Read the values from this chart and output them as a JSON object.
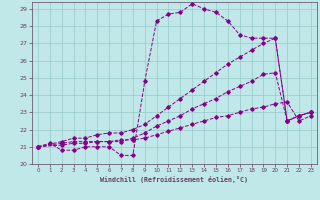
{
  "xlabel": "Windchill (Refroidissement éolien,°C)",
  "bg_color": "#c0e8e8",
  "grid_color": "#98c8c8",
  "line_color": "#880088",
  "spine_color": "#604060",
  "xlim": [
    -0.5,
    23.5
  ],
  "ylim": [
    20,
    29.4
  ],
  "xticks": [
    0,
    1,
    2,
    3,
    4,
    5,
    6,
    7,
    8,
    9,
    10,
    11,
    12,
    13,
    14,
    15,
    16,
    17,
    18,
    19,
    20,
    21,
    22,
    23
  ],
  "yticks": [
    20,
    21,
    22,
    23,
    24,
    25,
    26,
    27,
    28,
    29
  ],
  "line1_x": [
    0,
    1,
    2,
    3,
    4,
    5,
    6,
    7,
    8,
    9,
    10,
    11,
    12,
    13,
    14,
    15,
    16,
    17,
    18,
    19,
    20,
    21,
    22,
    23
  ],
  "line1_y": [
    21.0,
    21.2,
    20.8,
    20.8,
    21.0,
    21.0,
    21.0,
    20.5,
    20.5,
    24.8,
    28.3,
    28.7,
    28.8,
    29.3,
    29.0,
    28.8,
    28.3,
    27.5,
    27.3,
    27.3,
    27.3,
    22.5,
    22.8,
    23.0
  ],
  "line2_x": [
    0,
    2,
    3,
    4,
    5,
    6,
    7,
    8,
    9,
    10,
    11,
    12,
    13,
    14,
    15,
    16,
    17,
    18,
    19,
    20,
    21,
    22,
    23
  ],
  "line2_y": [
    21.0,
    21.3,
    21.5,
    21.5,
    21.7,
    21.8,
    21.8,
    22.0,
    22.3,
    22.8,
    23.3,
    23.8,
    24.3,
    24.8,
    25.3,
    25.8,
    26.2,
    26.6,
    27.0,
    27.3,
    22.5,
    22.8,
    23.0
  ],
  "line3_x": [
    0,
    2,
    3,
    4,
    5,
    6,
    7,
    8,
    9,
    10,
    11,
    12,
    13,
    14,
    15,
    16,
    17,
    18,
    19,
    20,
    21,
    22,
    23
  ],
  "line3_y": [
    21.0,
    21.2,
    21.3,
    21.3,
    21.3,
    21.3,
    21.3,
    21.5,
    21.8,
    22.2,
    22.5,
    22.8,
    23.2,
    23.5,
    23.8,
    24.2,
    24.5,
    24.8,
    25.2,
    25.3,
    22.5,
    22.8,
    23.0
  ],
  "line4_x": [
    0,
    2,
    3,
    4,
    5,
    6,
    7,
    8,
    9,
    10,
    11,
    12,
    13,
    14,
    15,
    16,
    17,
    18,
    19,
    20,
    21,
    22,
    23
  ],
  "line4_y": [
    21.0,
    21.1,
    21.2,
    21.2,
    21.3,
    21.3,
    21.4,
    21.4,
    21.5,
    21.7,
    21.9,
    22.1,
    22.3,
    22.5,
    22.7,
    22.8,
    23.0,
    23.2,
    23.3,
    23.5,
    23.6,
    22.5,
    22.8
  ]
}
